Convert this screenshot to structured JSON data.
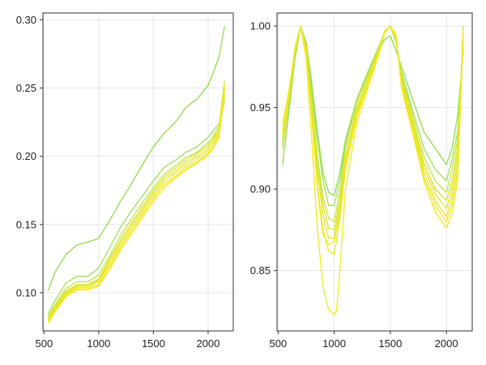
{
  "chart_data": [
    {
      "type": "line",
      "title": "",
      "xlabel": "",
      "ylabel": "",
      "xlim": [
        490,
        2230
      ],
      "ylim": [
        0.072,
        0.305
      ],
      "x_ticks": [
        500,
        1000,
        1500,
        2000
      ],
      "y_ticks": [
        0.1,
        0.15,
        0.2,
        0.25,
        0.3
      ],
      "y_tick_labels": [
        "0.10",
        "0.15",
        "0.20",
        "0.25",
        "0.30"
      ],
      "grid": true,
      "series": [
        {
          "color": "#8fdb4c",
          "x": [
            540,
            600,
            700,
            800,
            900,
            1000,
            1100,
            1200,
            1300,
            1400,
            1500,
            1600,
            1700,
            1800,
            1900,
            2000,
            2050,
            2100,
            2150
          ],
          "y": [
            0.102,
            0.115,
            0.128,
            0.135,
            0.137,
            0.14,
            0.153,
            0.167,
            0.18,
            0.194,
            0.207,
            0.217,
            0.225,
            0.236,
            0.242,
            0.252,
            0.262,
            0.273,
            0.295
          ]
        },
        {
          "color": "#9ee05a",
          "x": [
            540,
            600,
            700,
            800,
            900,
            1000,
            1100,
            1200,
            1300,
            1400,
            1500,
            1600,
            1700,
            1800,
            1900,
            2000,
            2050,
            2100,
            2150
          ],
          "y": [
            0.085,
            0.094,
            0.107,
            0.112,
            0.112,
            0.118,
            0.133,
            0.148,
            0.16,
            0.171,
            0.182,
            0.192,
            0.197,
            0.203,
            0.207,
            0.214,
            0.219,
            0.224,
            0.246
          ]
        },
        {
          "color": "#c6e43a",
          "x": [
            540,
            600,
            700,
            800,
            900,
            1000,
            1100,
            1200,
            1300,
            1400,
            1500,
            1600,
            1700,
            1800,
            1900,
            2000,
            2050,
            2100,
            2150
          ],
          "y": [
            0.083,
            0.091,
            0.103,
            0.108,
            0.108,
            0.113,
            0.127,
            0.142,
            0.154,
            0.166,
            0.177,
            0.187,
            0.193,
            0.199,
            0.203,
            0.21,
            0.215,
            0.222,
            0.24
          ]
        },
        {
          "color": "#d5e52e",
          "x": [
            540,
            600,
            700,
            800,
            900,
            1000,
            1100,
            1200,
            1300,
            1400,
            1500,
            1600,
            1700,
            1800,
            1900,
            2000,
            2050,
            2100,
            2150
          ],
          "y": [
            0.082,
            0.09,
            0.101,
            0.106,
            0.106,
            0.11,
            0.125,
            0.139,
            0.151,
            0.163,
            0.175,
            0.185,
            0.191,
            0.197,
            0.202,
            0.208,
            0.213,
            0.222,
            0.255
          ]
        },
        {
          "color": "#e1e626",
          "x": [
            540,
            600,
            700,
            800,
            900,
            1000,
            1100,
            1200,
            1300,
            1400,
            1500,
            1600,
            1700,
            1800,
            1900,
            2000,
            2050,
            2100,
            2150
          ],
          "y": [
            0.081,
            0.089,
            0.1,
            0.105,
            0.105,
            0.109,
            0.123,
            0.137,
            0.149,
            0.161,
            0.173,
            0.183,
            0.189,
            0.195,
            0.2,
            0.206,
            0.211,
            0.219,
            0.25
          ]
        },
        {
          "color": "#ebe720",
          "x": [
            540,
            600,
            700,
            800,
            900,
            1000,
            1100,
            1200,
            1300,
            1400,
            1500,
            1600,
            1700,
            1800,
            1900,
            2000,
            2050,
            2100,
            2150
          ],
          "y": [
            0.08,
            0.088,
            0.099,
            0.104,
            0.104,
            0.108,
            0.121,
            0.135,
            0.147,
            0.159,
            0.171,
            0.181,
            0.187,
            0.193,
            0.198,
            0.204,
            0.209,
            0.217,
            0.248
          ]
        },
        {
          "color": "#f2e81e",
          "x": [
            540,
            600,
            700,
            800,
            900,
            1000,
            1100,
            1200,
            1300,
            1400,
            1500,
            1600,
            1700,
            1800,
            1900,
            2000,
            2050,
            2100,
            2150
          ],
          "y": [
            0.079,
            0.087,
            0.098,
            0.103,
            0.103,
            0.106,
            0.119,
            0.133,
            0.145,
            0.157,
            0.169,
            0.179,
            0.185,
            0.191,
            0.196,
            0.202,
            0.207,
            0.215,
            0.244
          ]
        },
        {
          "color": "#f7e71c",
          "x": [
            540,
            600,
            700,
            800,
            900,
            1000,
            1100,
            1200,
            1300,
            1400,
            1500,
            1600,
            1700,
            1800,
            1900,
            2000,
            2050,
            2100,
            2150
          ],
          "y": [
            0.078,
            0.086,
            0.097,
            0.102,
            0.102,
            0.105,
            0.117,
            0.131,
            0.143,
            0.155,
            0.167,
            0.177,
            0.184,
            0.19,
            0.195,
            0.201,
            0.206,
            0.214,
            0.252
          ]
        }
      ]
    },
    {
      "type": "line",
      "title": "",
      "xlabel": "",
      "ylabel": "",
      "xlim": [
        490,
        2230
      ],
      "ylim": [
        0.813,
        1.008
      ],
      "x_ticks": [
        500,
        1000,
        1500,
        2000
      ],
      "y_ticks": [
        0.85,
        0.9,
        0.95,
        1.0
      ],
      "y_tick_labels": [
        "0.85",
        "0.90",
        "0.95",
        "1.00"
      ],
      "grid": true,
      "series": [
        {
          "color": "#8fdb4c",
          "x": [
            540,
            600,
            650,
            700,
            750,
            800,
            850,
            900,
            950,
            1000,
            1050,
            1100,
            1200,
            1300,
            1400,
            1450,
            1500,
            1550,
            1600,
            1700,
            1800,
            1900,
            2000,
            2050,
            2100,
            2150
          ],
          "y": [
            0.915,
            0.95,
            0.98,
            1.0,
            0.99,
            0.965,
            0.935,
            0.91,
            0.898,
            0.896,
            0.91,
            0.93,
            0.955,
            0.97,
            0.985,
            0.992,
            0.994,
            0.985,
            0.975,
            0.955,
            0.935,
            0.925,
            0.915,
            0.925,
            0.945,
            0.985
          ]
        },
        {
          "color": "#9ee05a",
          "x": [
            540,
            600,
            650,
            700,
            750,
            800,
            850,
            900,
            950,
            1000,
            1050,
            1100,
            1200,
            1300,
            1400,
            1450,
            1500,
            1550,
            1600,
            1700,
            1800,
            1900,
            2000,
            2050,
            2100,
            2150
          ],
          "y": [
            0.925,
            0.955,
            0.983,
            1.0,
            0.99,
            0.96,
            0.93,
            0.905,
            0.89,
            0.89,
            0.905,
            0.928,
            0.955,
            0.972,
            0.988,
            0.996,
            1.0,
            0.99,
            0.972,
            0.948,
            0.925,
            0.912,
            0.905,
            0.918,
            0.935,
            0.99
          ]
        },
        {
          "color": "#c6e43a",
          "x": [
            540,
            600,
            650,
            700,
            750,
            800,
            850,
            900,
            950,
            1000,
            1050,
            1100,
            1200,
            1300,
            1400,
            1450,
            1500,
            1550,
            1600,
            1700,
            1800,
            1900,
            2000,
            2050,
            2100,
            2150
          ],
          "y": [
            0.93,
            0.958,
            0.985,
            1.0,
            0.988,
            0.955,
            0.92,
            0.895,
            0.882,
            0.88,
            0.898,
            0.925,
            0.953,
            0.97,
            0.987,
            0.997,
            1.0,
            0.992,
            0.97,
            0.945,
            0.92,
            0.905,
            0.898,
            0.912,
            0.93,
            0.995
          ]
        },
        {
          "color": "#d5e52e",
          "x": [
            540,
            600,
            650,
            700,
            750,
            800,
            850,
            900,
            950,
            1000,
            1050,
            1100,
            1200,
            1300,
            1400,
            1450,
            1500,
            1550,
            1600,
            1700,
            1800,
            1900,
            2000,
            2050,
            2100,
            2150
          ],
          "y": [
            0.935,
            0.96,
            0.986,
            1.0,
            0.986,
            0.95,
            0.915,
            0.89,
            0.876,
            0.875,
            0.893,
            0.92,
            0.95,
            0.968,
            0.986,
            0.997,
            1.0,
            0.993,
            0.968,
            0.942,
            0.916,
            0.9,
            0.893,
            0.905,
            0.925,
            0.998
          ]
        },
        {
          "color": "#e1e626",
          "x": [
            540,
            600,
            650,
            700,
            750,
            800,
            850,
            900,
            950,
            1000,
            1050,
            1100,
            1200,
            1300,
            1400,
            1450,
            1500,
            1550,
            1600,
            1700,
            1800,
            1900,
            2000,
            2050,
            2100,
            2150
          ],
          "y": [
            0.928,
            0.957,
            0.984,
            1.0,
            0.985,
            0.948,
            0.91,
            0.884,
            0.87,
            0.87,
            0.89,
            0.918,
            0.948,
            0.966,
            0.985,
            0.996,
            1.0,
            0.992,
            0.966,
            0.94,
            0.913,
            0.897,
            0.888,
            0.9,
            0.92,
            1.0
          ]
        },
        {
          "color": "#ebe720",
          "x": [
            540,
            600,
            650,
            700,
            750,
            800,
            850,
            900,
            950,
            1000,
            1050,
            1100,
            1200,
            1300,
            1400,
            1450,
            1500,
            1550,
            1600,
            1700,
            1800,
            1900,
            2000,
            2050,
            2100,
            2150
          ],
          "y": [
            0.94,
            0.962,
            0.987,
            1.0,
            0.984,
            0.945,
            0.902,
            0.875,
            0.862,
            0.86,
            0.882,
            0.912,
            0.944,
            0.964,
            0.984,
            0.996,
            1.0,
            0.994,
            0.965,
            0.938,
            0.91,
            0.893,
            0.883,
            0.895,
            0.915,
            0.998
          ]
        },
        {
          "color": "#f2e81e",
          "x": [
            540,
            600,
            650,
            700,
            750,
            800,
            850,
            900,
            950,
            1000,
            1050,
            1100,
            1200,
            1300,
            1400,
            1450,
            1500,
            1550,
            1600,
            1700,
            1800,
            1900,
            2000,
            2050,
            2100,
            2150
          ],
          "y": [
            0.932,
            0.958,
            0.985,
            1.0,
            0.984,
            0.943,
            0.9,
            0.872,
            0.866,
            0.868,
            0.885,
            0.914,
            0.946,
            0.965,
            0.985,
            0.997,
            1.0,
            0.993,
            0.964,
            0.936,
            0.907,
            0.89,
            0.88,
            0.89,
            0.91,
            0.996
          ]
        },
        {
          "color": "#f7e71c",
          "x": [
            540,
            600,
            650,
            700,
            750,
            800,
            850,
            900,
            950,
            1000,
            1020,
            1050,
            1100,
            1200,
            1300,
            1400,
            1450,
            1500,
            1550,
            1600,
            1700,
            1800,
            1900,
            2000,
            2050,
            2100,
            2150
          ],
          "y": [
            0.936,
            0.96,
            0.986,
            1.0,
            0.98,
            0.93,
            0.875,
            0.84,
            0.826,
            0.823,
            0.825,
            0.85,
            0.9,
            0.94,
            0.962,
            0.983,
            0.996,
            1.0,
            0.995,
            0.962,
            0.934,
            0.905,
            0.886,
            0.876,
            0.885,
            0.905,
            0.994
          ]
        }
      ]
    }
  ]
}
